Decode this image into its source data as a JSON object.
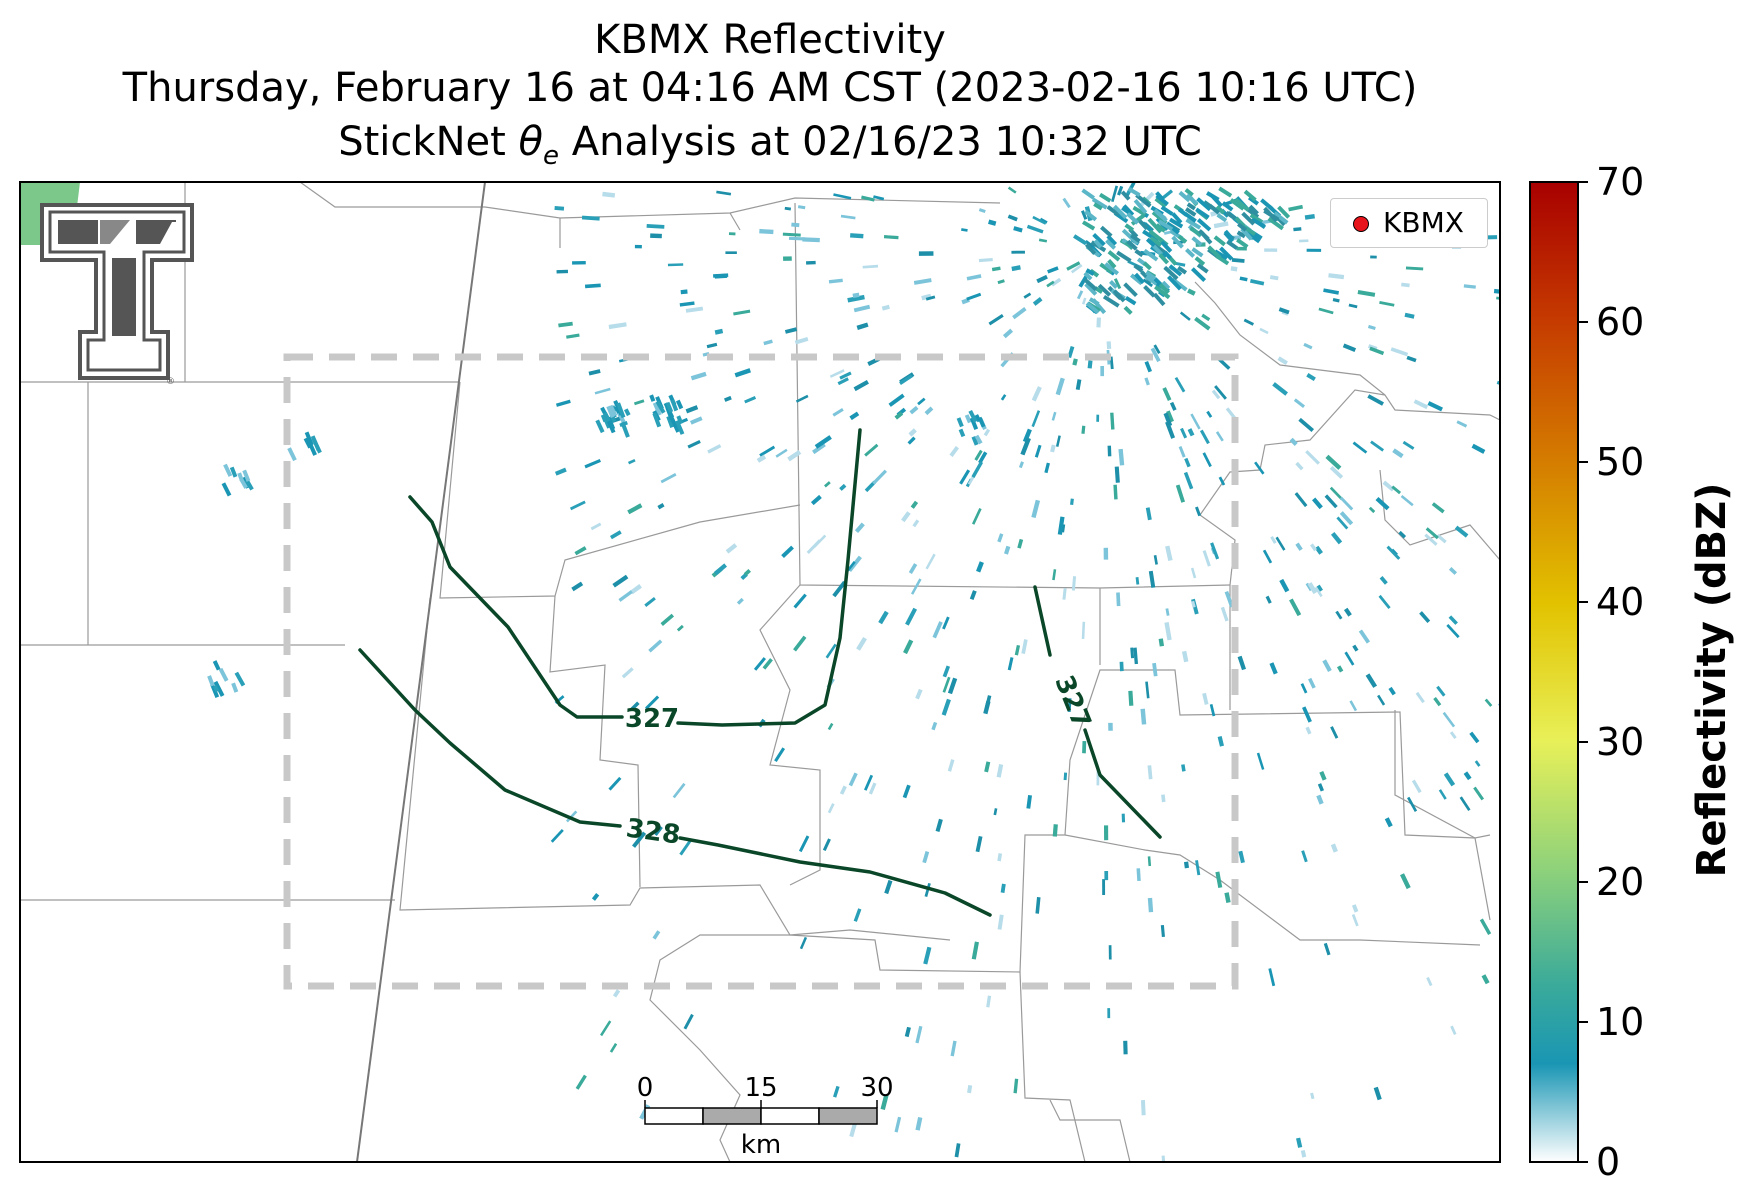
{
  "title": {
    "line1": "KBMX Reflectivity",
    "line2": "Thursday, February 16 at 04:16 AM CST (2023-02-16 10:16 UTC)",
    "line3_prefix": "StickNet ",
    "line3_symbol": "θ",
    "line3_subscript": "e",
    "line3_suffix": " Analysis at 02/16/23 10:32 UTC"
  },
  "legend": {
    "label": "KBMX",
    "marker_color": "#e8141c"
  },
  "colorbar": {
    "label": "Reflectivity (dBZ)",
    "min": 0,
    "max": 70,
    "ticks": [
      "0",
      "10",
      "20",
      "30",
      "40",
      "50",
      "60",
      "70"
    ],
    "colors": [
      "#ffffff",
      "#1a96b4",
      "#3aaa9a",
      "#8fd27a",
      "#e8f058",
      "#e2c200",
      "#d47a00",
      "#c53a00",
      "#a80000"
    ]
  },
  "contours": [
    {
      "label": "327"
    },
    {
      "label": "327"
    },
    {
      "label": "328"
    }
  ],
  "contour_color": "#0a4628",
  "scale_bar": {
    "ticks": [
      "0",
      "15",
      "30"
    ],
    "unit": "km"
  },
  "logo": {
    "name": "texas-tech-double-t-logo"
  }
}
